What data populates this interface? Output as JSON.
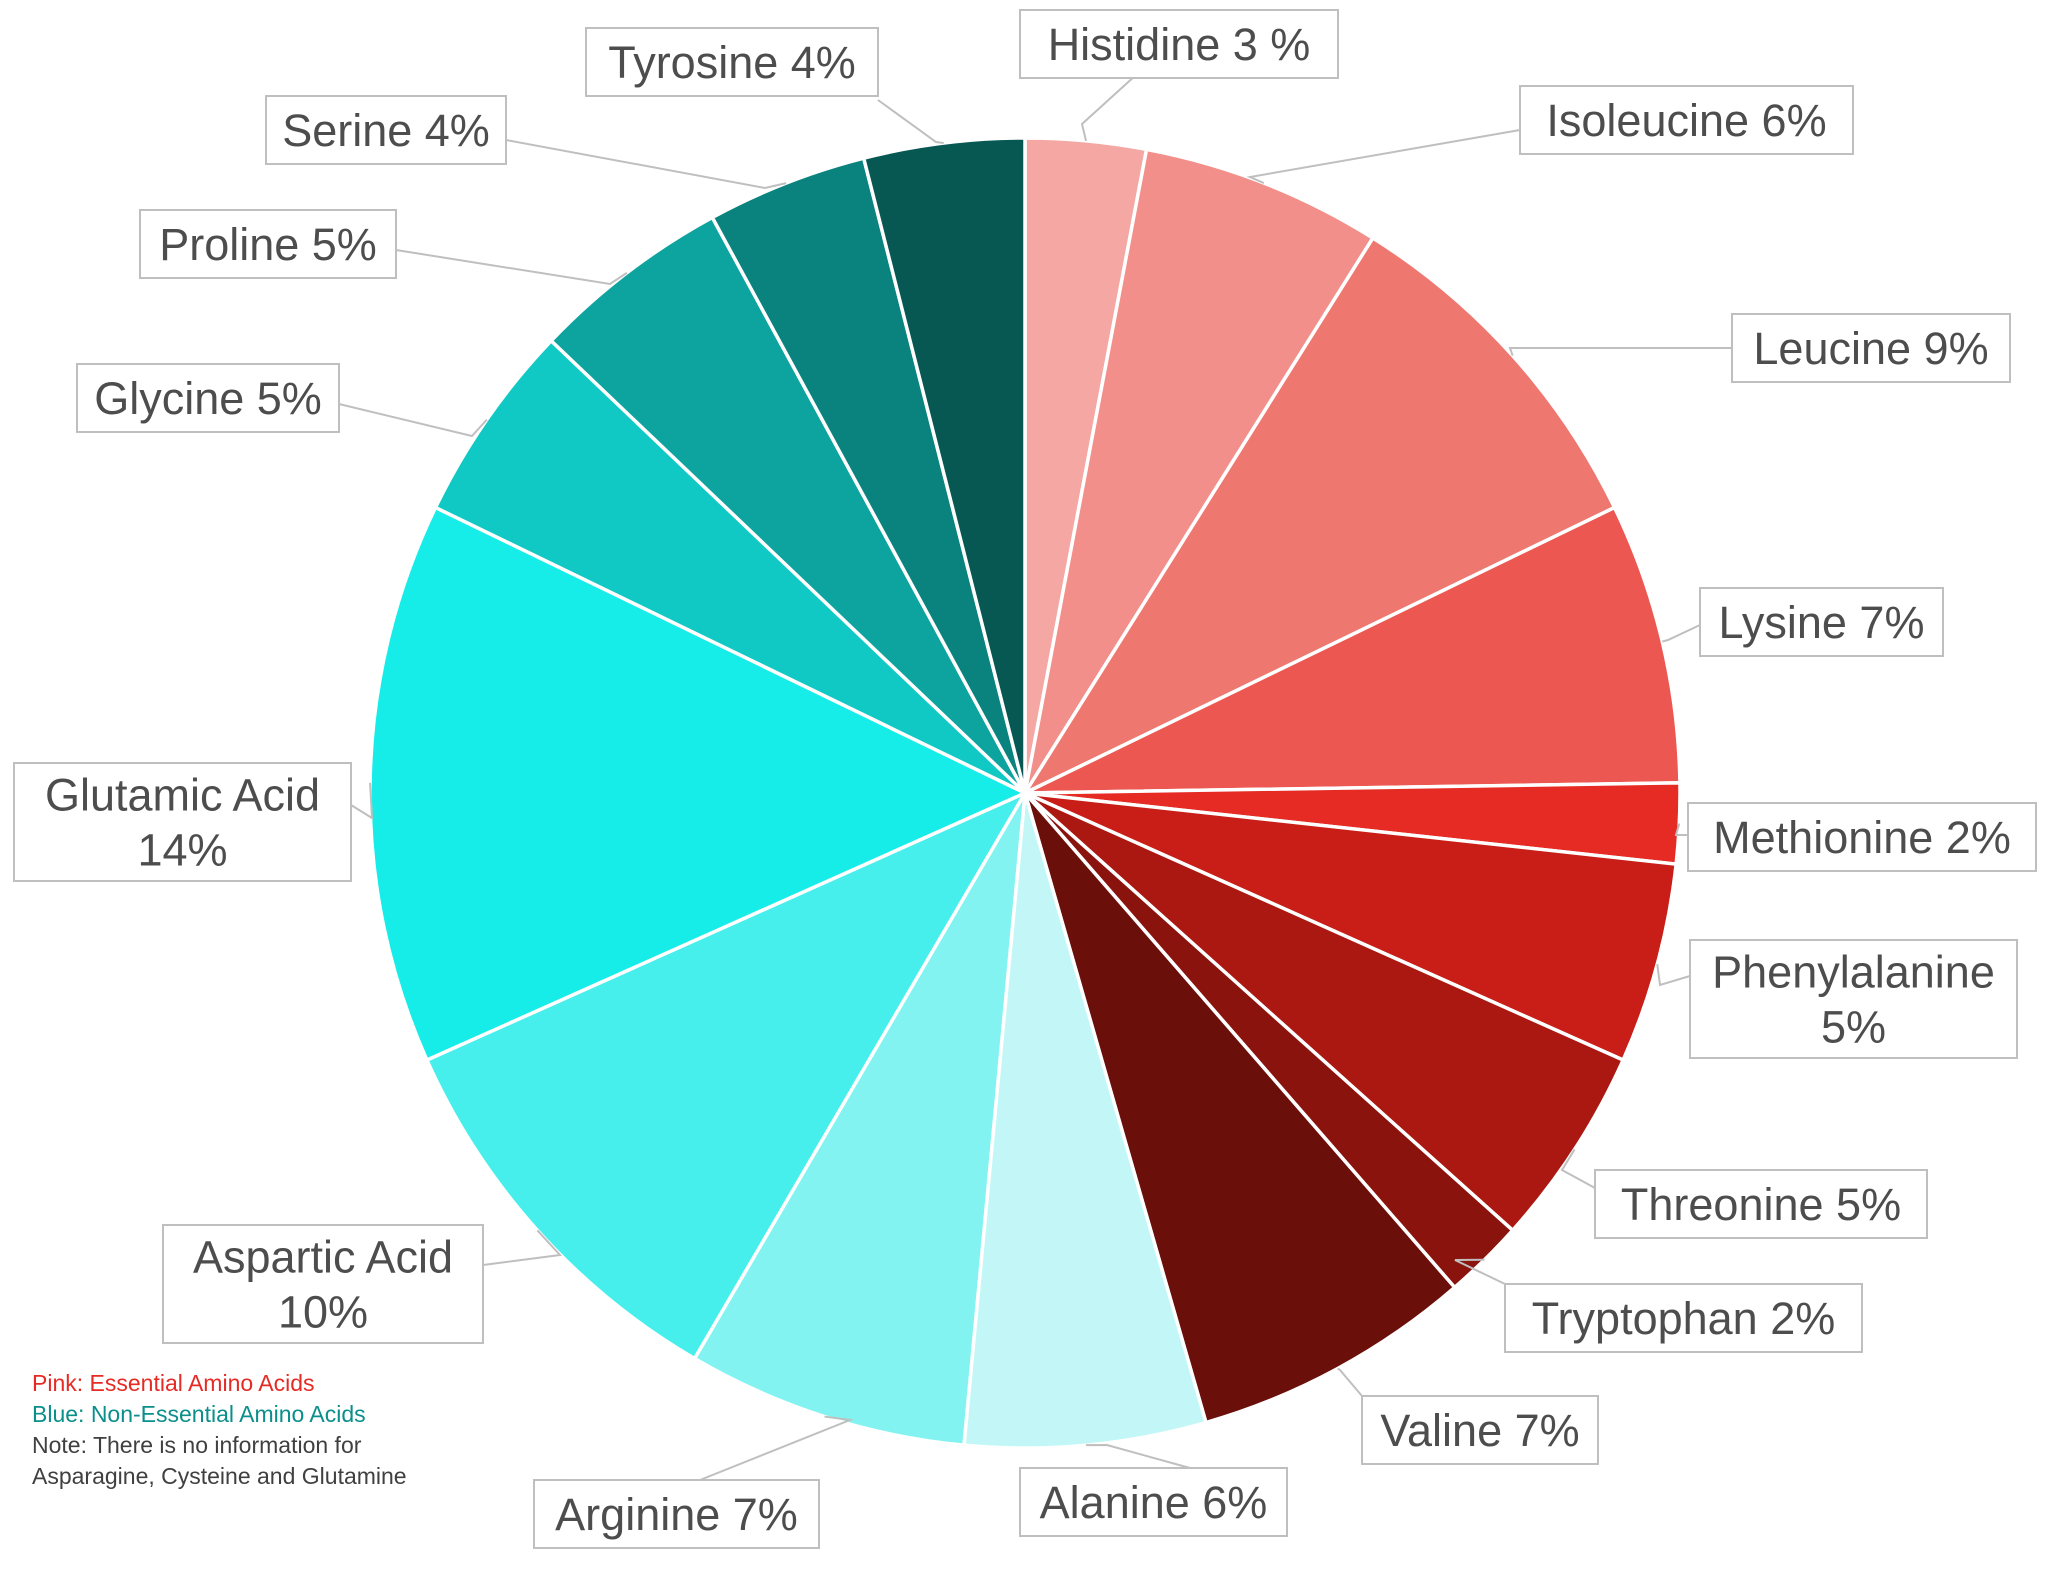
{
  "chart_data": {
    "type": "pie",
    "start_angle_deg": 0,
    "direction": "clockwise",
    "slices": [
      {
        "label": "Histidine 3 %",
        "value": 3,
        "color": "#F4A7A3"
      },
      {
        "label": "Isoleucine 6%",
        "value": 6,
        "color": "#F28F8A"
      },
      {
        "label": "Leucine 9%",
        "value": 9,
        "color": "#EE7770"
      },
      {
        "label": "Lysine 7%",
        "value": 7,
        "color": "#EC5751"
      },
      {
        "label": "Methionine 2%",
        "value": 2,
        "color": "#E52B24"
      },
      {
        "label": "Phenylalanine 5%",
        "value": 5,
        "color": "#C81E17"
      },
      {
        "label": "Threonine 5%",
        "value": 5,
        "color": "#AB1812"
      },
      {
        "label": "Tryptophan 2%",
        "value": 2,
        "color": "#8A130E"
      },
      {
        "label": "Valine 7%",
        "value": 7,
        "color": "#6B0F0B"
      },
      {
        "label": "Alanine 6%",
        "value": 6,
        "color": "#C3F7F7"
      },
      {
        "label": "Arginine 7%",
        "value": 7,
        "color": "#82F3F1"
      },
      {
        "label": "Aspartic Acid 10%",
        "value": 10,
        "color": "#47EFEC"
      },
      {
        "label": "Glutamic Acid 14%",
        "value": 14,
        "color": "#17EDE8"
      },
      {
        "label": "Glycine 5%",
        "value": 5,
        "color": "#11C9C4"
      },
      {
        "label": "Proline 5%",
        "value": 5,
        "color": "#0DA39F"
      },
      {
        "label": "Serine 4%",
        "value": 4,
        "color": "#0A827E"
      },
      {
        "label": "Tyrosine 4%",
        "value": 4,
        "color": "#075753"
      }
    ]
  },
  "notes": {
    "pink": "Pink: Essential Amino Acids",
    "blue": "Blue: Non-Essential Amino Acids",
    "note": "Note: There is no information for Asparagine, Cysteine and Glutamine",
    "pink_color": "#E52B24",
    "blue_color": "#0A8F8A",
    "note_color": "#404040"
  }
}
